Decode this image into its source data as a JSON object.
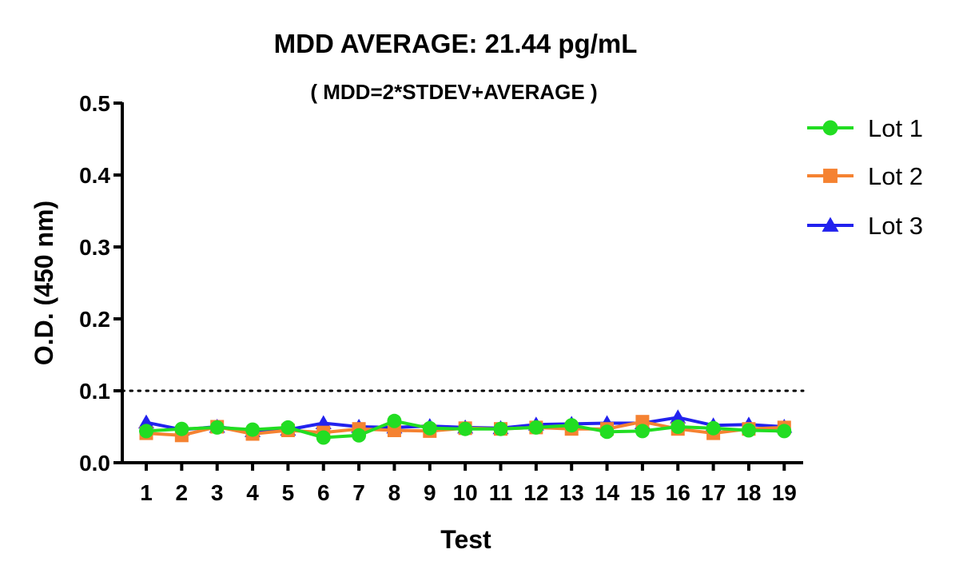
{
  "chart_data": {
    "type": "line",
    "title": "MDD AVERAGE:  21.44 pg/mL",
    "subtitle": "( MDD=2*STDEV+AVERAGE )",
    "xlabel": "Test",
    "ylabel": "O.D. (450 nm)",
    "x": [
      1,
      2,
      3,
      4,
      5,
      6,
      7,
      8,
      9,
      10,
      11,
      12,
      13,
      14,
      15,
      16,
      17,
      18,
      19
    ],
    "ylim": [
      0,
      0.5
    ],
    "yticks": [
      "0.0",
      "0.1",
      "0.2",
      "0.3",
      "0.4",
      "0.5"
    ],
    "reference_line": {
      "y": 0.1,
      "style": "dotted"
    },
    "grid": false,
    "legend": "right",
    "series": [
      {
        "name": "Lot 1",
        "marker": "circle",
        "color": "#22dd22",
        "values": [
          0.044,
          0.047,
          0.049,
          0.046,
          0.049,
          0.035,
          0.038,
          0.058,
          0.048,
          0.047,
          0.047,
          0.049,
          0.052,
          0.043,
          0.044,
          0.05,
          0.048,
          0.045,
          0.044
        ]
      },
      {
        "name": "Lot 2",
        "marker": "square",
        "color": "#f58231",
        "values": [
          0.041,
          0.038,
          0.05,
          0.04,
          0.045,
          0.042,
          0.047,
          0.045,
          0.044,
          0.048,
          0.047,
          0.049,
          0.047,
          0.047,
          0.057,
          0.047,
          0.041,
          0.047,
          0.049
        ]
      },
      {
        "name": "Lot 3",
        "marker": "triangle",
        "color": "#2222ee",
        "values": [
          0.056,
          0.046,
          0.05,
          0.044,
          0.046,
          0.055,
          0.05,
          0.049,
          0.051,
          0.049,
          0.048,
          0.053,
          0.054,
          0.055,
          0.055,
          0.063,
          0.052,
          0.053,
          0.05
        ]
      }
    ]
  }
}
